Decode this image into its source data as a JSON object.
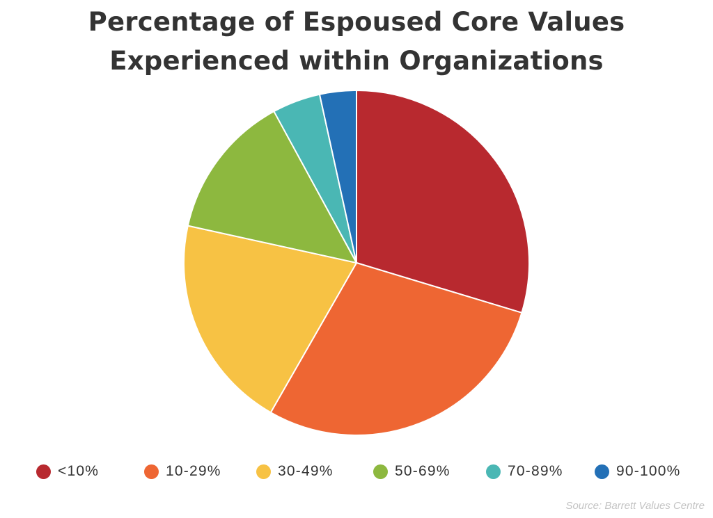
{
  "chart_data": {
    "type": "pie",
    "title_lines": [
      "Percentage of Espoused Core Values",
      "Experienced within Organizations"
    ],
    "categories": [
      "<10%",
      "10-29%",
      "30-49%",
      "50-69%",
      "70-89%",
      "90-100%"
    ],
    "values": [
      30.3,
      29.2,
      20.6,
      13.9,
      4.6,
      3.5
    ],
    "colors": [
      "#b8292f",
      "#ee6633",
      "#f7c244",
      "#8db83f",
      "#4ab7b4",
      "#2370b6"
    ],
    "legend_position": "bottom",
    "start": "12 o'clock, clockwise",
    "source": "Source: Barrett Values Centre"
  }
}
